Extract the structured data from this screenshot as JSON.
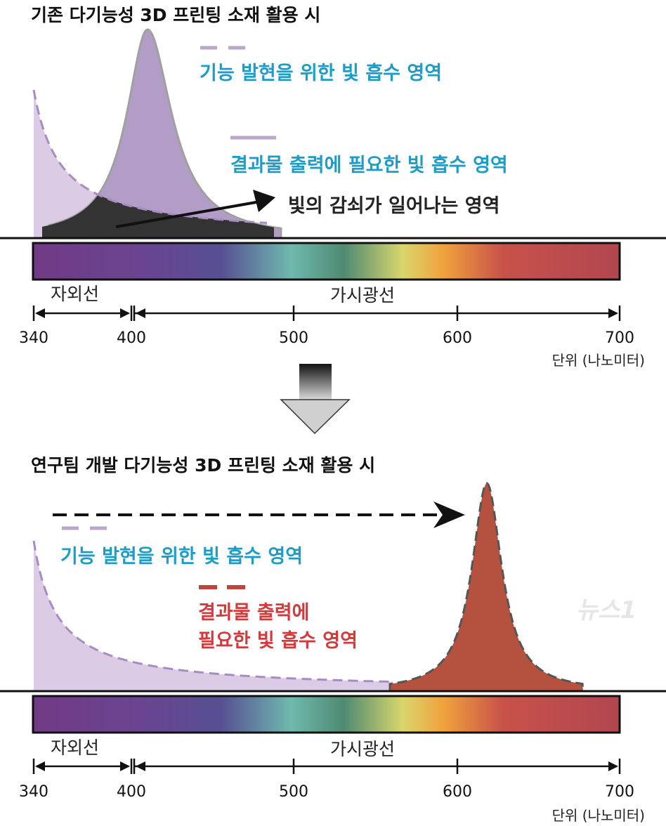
{
  "top_panel": {
    "title": "기존 다기능성 3D 프린팅 소재 활용 시",
    "legend_function": "기능 발현을 위한 빛 흡수 영역",
    "legend_output": "결과물 출력에 필요한 빛 흡수 영역",
    "attenuation_label": "빛의 감쇠가 일어나는 영역"
  },
  "bottom_panel": {
    "title": "연구팀 개발 다기능성 3D 프린팅 소재 활용 시",
    "legend_function": "기능 발현을 위한 빛 흡수 영역",
    "legend_output_line1": "결과물 출력에",
    "legend_output_line2": "필요한 빛 흡수 영역"
  },
  "axis": {
    "uv_label": "자외선",
    "visible_label": "가시광선",
    "ticks": [
      "340",
      "400",
      "500",
      "600",
      "700"
    ],
    "unit": "단위 (나노미터)"
  },
  "colors": {
    "function_fill": "#dccbe4",
    "function_dash": "#a98bc4",
    "output_fill_top": "#b29dc7",
    "output_fill_bottom": "#b4523f",
    "overlap_fill": "#333333",
    "cyan_text": "#1e9cc8",
    "red_text": "#d23a3c"
  },
  "watermark": "뉴스1"
}
